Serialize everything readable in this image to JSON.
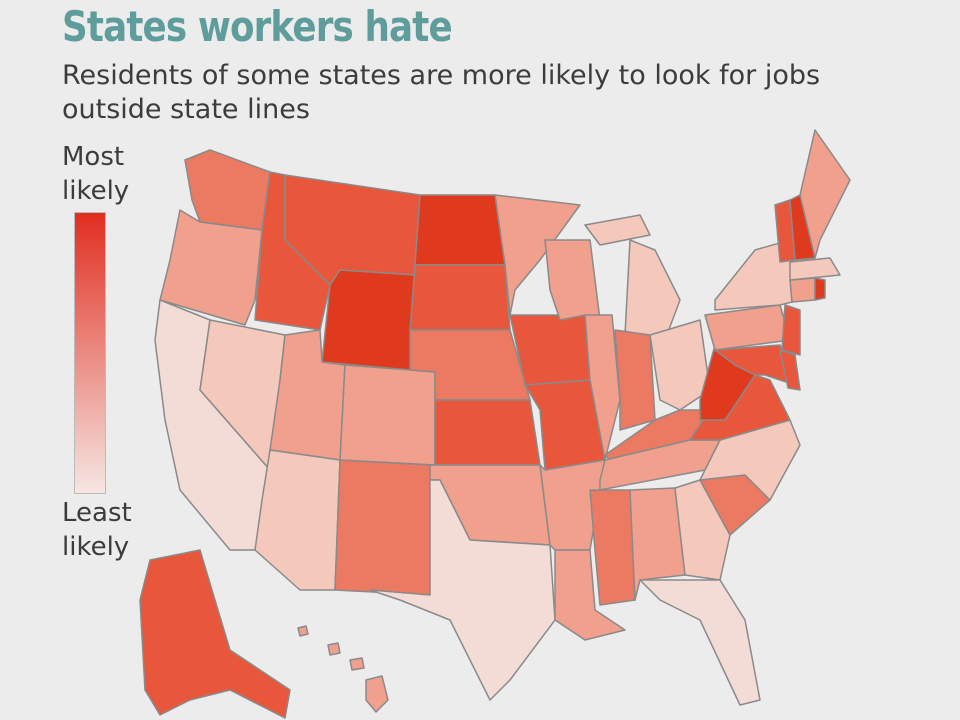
{
  "header": {
    "title": "States workers hate",
    "subtitle_lines": [
      "Residents of some states are more likely to look for jobs",
      "outside state lines"
    ]
  },
  "legend": {
    "top_label_lines": [
      "Most",
      "likely"
    ],
    "bottom_label_lines": [
      "Least",
      "likely"
    ],
    "top_color": "#e02e20",
    "bottom_color": "#f6e6e2"
  },
  "map": {
    "border_color": "#8a8a8a",
    "region_colors": [
      "#ec7a62",
      "#f0a08c",
      "#f4dcd6",
      "#f5c8bc",
      "#e8573c",
      "#e8573c",
      "#e03a1e",
      "#f0a08c",
      "#f0a08c",
      "#f5c8bc",
      "#ec7a62",
      "#e03a1e",
      "#e8573c",
      "#ec7a62",
      "#e8573c",
      "#f0a08c",
      "#f4dcd6",
      "#f0a08c",
      "#e8573c",
      "#e8573c",
      "#f0a08c",
      "#f0a08c",
      "#f0a08c",
      "#f0a08c",
      "#f5c8bc",
      "#f5c8bc",
      "#ec7a62",
      "#f5c8bc",
      "#ec7a62",
      "#f0a08c",
      "#ec7a62",
      "#f0a08c",
      "#f5c8bc",
      "#f4dcd6",
      "#ec7a62",
      "#f5c8bc",
      "#e8573c",
      "#e03a1e",
      "#f0a08c",
      "#f5c8bc",
      "#e8573c",
      "#e8573c",
      "#e8573c",
      "#f0a08c",
      "#e03a1e",
      "#f5c8bc",
      "#e8573c",
      "#e03a1e",
      "#f0a08c",
      "#e8573c",
      "#f0a08c"
    ]
  }
}
